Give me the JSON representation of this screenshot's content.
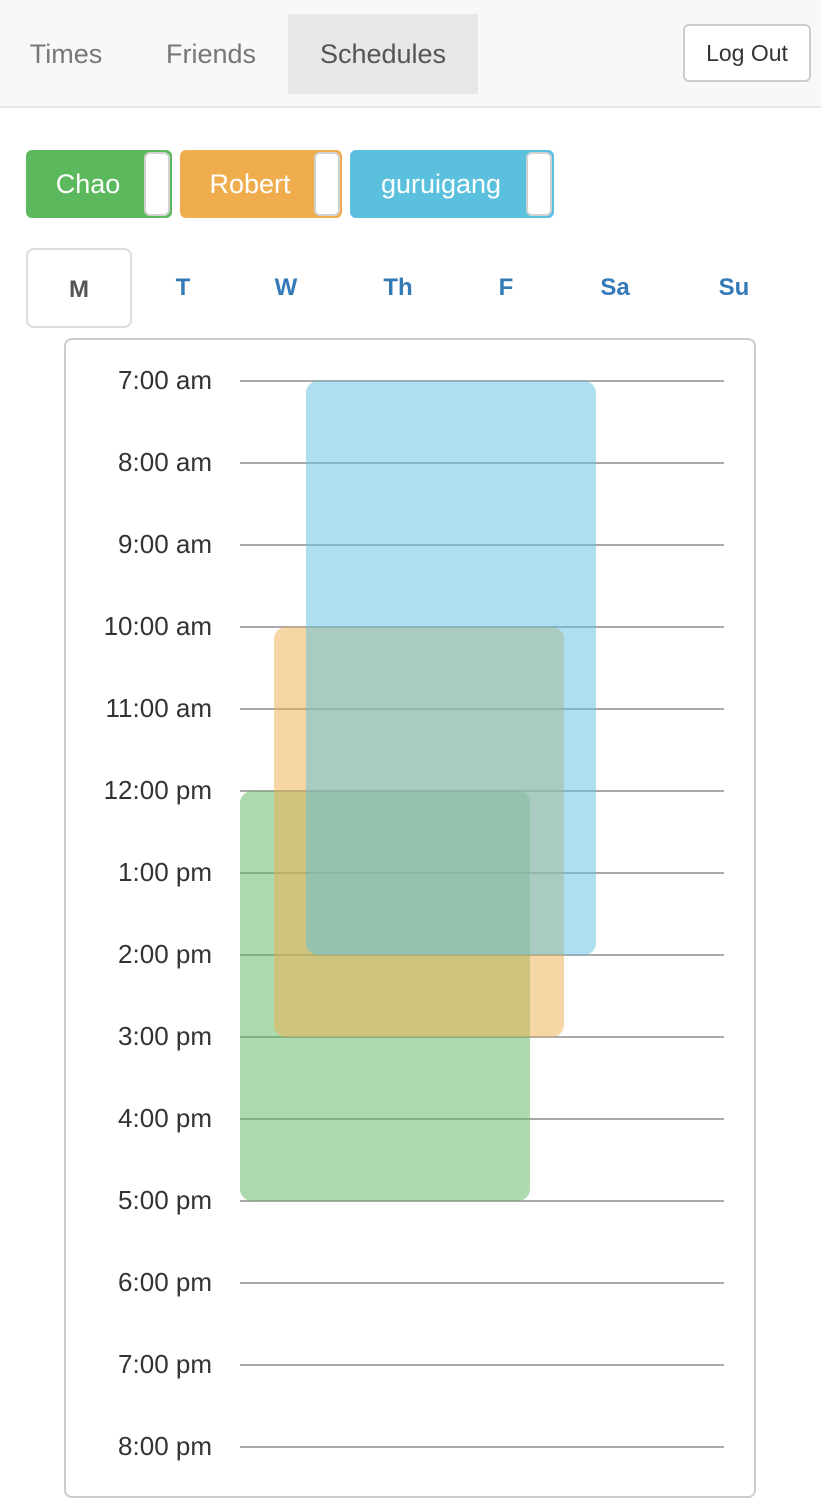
{
  "nav": {
    "tabs": [
      {
        "label": "Times"
      },
      {
        "label": "Friends"
      },
      {
        "label": "Schedules"
      }
    ],
    "active_tab": "Schedules",
    "logout_label": "Log Out"
  },
  "friends": [
    {
      "name": "Chao",
      "color": "#5cb85c",
      "enabled": true
    },
    {
      "name": "Robert",
      "color": "#f0ad4e",
      "enabled": true
    },
    {
      "name": "guruigang",
      "color": "#5bc0de",
      "enabled": true
    }
  ],
  "days": [
    {
      "label": "M"
    },
    {
      "label": "T"
    },
    {
      "label": "W"
    },
    {
      "label": "Th"
    },
    {
      "label": "F"
    },
    {
      "label": "Sa"
    },
    {
      "label": "Su"
    }
  ],
  "active_day": "M",
  "schedule": {
    "hours": [
      {
        "label": "7:00 am"
      },
      {
        "label": "8:00 am"
      },
      {
        "label": "9:00 am"
      },
      {
        "label": "10:00 am"
      },
      {
        "label": "11:00 am"
      },
      {
        "label": "12:00 pm"
      },
      {
        "label": "1:00 pm"
      },
      {
        "label": "2:00 pm"
      },
      {
        "label": "3:00 pm"
      },
      {
        "label": "4:00 pm"
      },
      {
        "label": "5:00 pm"
      },
      {
        "label": "6:00 pm"
      },
      {
        "label": "7:00 pm"
      },
      {
        "label": "8:00 pm"
      }
    ],
    "blocks": [
      {
        "friend": "Chao",
        "start_hour": 12,
        "end_hour": 17,
        "color": "#5cb85c"
      },
      {
        "friend": "Robert",
        "start_hour": 10,
        "end_hour": 15,
        "color": "#f0ad4e"
      },
      {
        "friend": "guruigang",
        "start_hour": 7,
        "end_hour": 14,
        "color": "#5bc0de"
      }
    ]
  }
}
